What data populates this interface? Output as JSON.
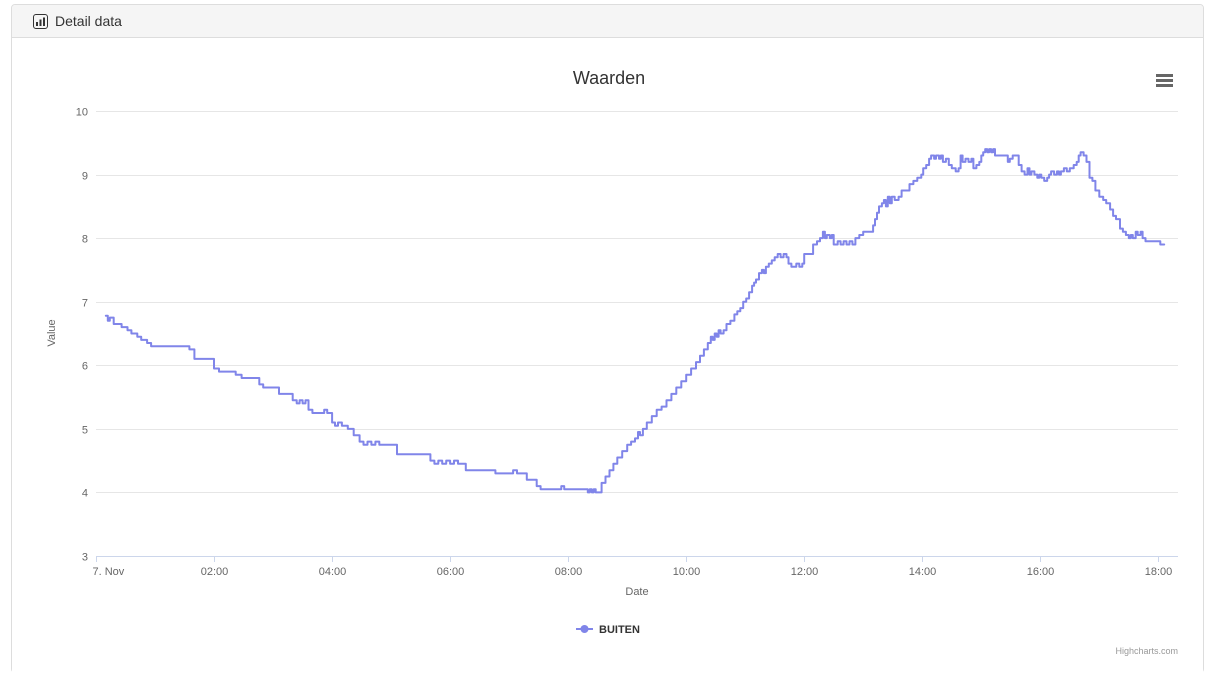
{
  "panel": {
    "title": "Detail data",
    "icon": "bar-chart-icon"
  },
  "chart": {
    "credits": "Highcharts.com",
    "context_menu_icon": "hamburger-icon",
    "y_ticks": [
      3,
      4,
      5,
      6,
      7,
      8,
      9,
      10
    ],
    "x_ticks": [
      {
        "label": "7. Nov",
        "t": 0
      },
      {
        "label": "02:00",
        "t": 120
      },
      {
        "label": "04:00",
        "t": 240
      },
      {
        "label": "06:00",
        "t": 360
      },
      {
        "label": "08:00",
        "t": 480
      },
      {
        "label": "10:00",
        "t": 600
      },
      {
        "label": "12:00",
        "t": 720
      },
      {
        "label": "14:00",
        "t": 840
      },
      {
        "label": "16:00",
        "t": 960
      },
      {
        "label": "18:00",
        "t": 1080
      }
    ]
  },
  "chart_data": {
    "type": "line",
    "title": "Waarden",
    "xlabel": "Date",
    "ylabel": "Value",
    "x_unit": "minutes since 7. Nov 00:00",
    "xlim": [
      0,
      1100
    ],
    "ylim": [
      3,
      10
    ],
    "grid": "horizontal",
    "legend_position": "bottom-center",
    "colors": {
      "grid": "#e6e6e6",
      "axis": "#ccd6eb",
      "label": "#666666",
      "title": "#333333"
    },
    "series": [
      {
        "name": "BUITEN",
        "color": "#8085e9",
        "step": true,
        "data": [
          [
            10,
            6.78
          ],
          [
            12,
            6.7
          ],
          [
            14,
            6.75
          ],
          [
            18,
            6.65
          ],
          [
            26,
            6.6
          ],
          [
            32,
            6.55
          ],
          [
            36,
            6.5
          ],
          [
            42,
            6.45
          ],
          [
            46,
            6.4
          ],
          [
            52,
            6.35
          ],
          [
            56,
            6.3
          ],
          [
            90,
            6.3
          ],
          [
            95,
            6.25
          ],
          [
            100,
            6.1
          ],
          [
            116,
            6.1
          ],
          [
            120,
            5.95
          ],
          [
            125,
            5.9
          ],
          [
            138,
            5.9
          ],
          [
            142,
            5.85
          ],
          [
            148,
            5.8
          ],
          [
            162,
            5.8
          ],
          [
            166,
            5.7
          ],
          [
            170,
            5.65
          ],
          [
            182,
            5.65
          ],
          [
            186,
            5.55
          ],
          [
            196,
            5.55
          ],
          [
            200,
            5.45
          ],
          [
            204,
            5.4
          ],
          [
            207,
            5.45
          ],
          [
            210,
            5.4
          ],
          [
            213,
            5.45
          ],
          [
            216,
            5.3
          ],
          [
            220,
            5.25
          ],
          [
            229,
            5.25
          ],
          [
            232,
            5.3
          ],
          [
            235,
            5.25
          ],
          [
            240,
            5.1
          ],
          [
            243,
            5.05
          ],
          [
            246,
            5.1
          ],
          [
            250,
            5.05
          ],
          [
            256,
            5.0
          ],
          [
            262,
            4.9
          ],
          [
            268,
            4.8
          ],
          [
            272,
            4.75
          ],
          [
            276,
            4.8
          ],
          [
            280,
            4.75
          ],
          [
            284,
            4.8
          ],
          [
            288,
            4.75
          ],
          [
            302,
            4.75
          ],
          [
            306,
            4.6
          ],
          [
            336,
            4.6
          ],
          [
            340,
            4.5
          ],
          [
            344,
            4.45
          ],
          [
            348,
            4.5
          ],
          [
            352,
            4.45
          ],
          [
            356,
            4.5
          ],
          [
            360,
            4.45
          ],
          [
            364,
            4.5
          ],
          [
            368,
            4.45
          ],
          [
            376,
            4.35
          ],
          [
            402,
            4.35
          ],
          [
            406,
            4.3
          ],
          [
            420,
            4.3
          ],
          [
            424,
            4.35
          ],
          [
            428,
            4.3
          ],
          [
            438,
            4.2
          ],
          [
            448,
            4.1
          ],
          [
            452,
            4.05
          ],
          [
            470,
            4.05
          ],
          [
            473,
            4.1
          ],
          [
            476,
            4.05
          ],
          [
            498,
            4.05
          ],
          [
            500,
            4.0
          ],
          [
            502,
            4.05
          ],
          [
            504,
            4.0
          ],
          [
            506,
            4.05
          ],
          [
            508,
            4.0
          ],
          [
            511,
            4.0
          ],
          [
            514,
            4.15
          ],
          [
            518,
            4.25
          ],
          [
            522,
            4.35
          ],
          [
            526,
            4.45
          ],
          [
            530,
            4.55
          ],
          [
            535,
            4.65
          ],
          [
            540,
            4.75
          ],
          [
            544,
            4.8
          ],
          [
            548,
            4.85
          ],
          [
            551,
            4.95
          ],
          [
            553,
            4.9
          ],
          [
            556,
            5.0
          ],
          [
            560,
            5.1
          ],
          [
            565,
            5.2
          ],
          [
            570,
            5.3
          ],
          [
            575,
            5.35
          ],
          [
            580,
            5.45
          ],
          [
            585,
            5.55
          ],
          [
            590,
            5.65
          ],
          [
            595,
            5.75
          ],
          [
            600,
            5.85
          ],
          [
            605,
            5.95
          ],
          [
            610,
            6.05
          ],
          [
            614,
            6.15
          ],
          [
            618,
            6.25
          ],
          [
            622,
            6.35
          ],
          [
            625,
            6.45
          ],
          [
            627,
            6.4
          ],
          [
            629,
            6.5
          ],
          [
            631,
            6.45
          ],
          [
            633,
            6.55
          ],
          [
            635,
            6.5
          ],
          [
            638,
            6.55
          ],
          [
            641,
            6.65
          ],
          [
            645,
            6.7
          ],
          [
            649,
            6.8
          ],
          [
            652,
            6.85
          ],
          [
            655,
            6.9
          ],
          [
            658,
            7.0
          ],
          [
            661,
            7.05
          ],
          [
            664,
            7.15
          ],
          [
            667,
            7.25
          ],
          [
            669,
            7.3
          ],
          [
            671,
            7.35
          ],
          [
            674,
            7.45
          ],
          [
            677,
            7.5
          ],
          [
            679,
            7.45
          ],
          [
            681,
            7.55
          ],
          [
            684,
            7.6
          ],
          [
            687,
            7.65
          ],
          [
            690,
            7.7
          ],
          [
            693,
            7.75
          ],
          [
            696,
            7.7
          ],
          [
            699,
            7.75
          ],
          [
            702,
            7.7
          ],
          [
            704,
            7.6
          ],
          [
            707,
            7.55
          ],
          [
            712,
            7.6
          ],
          [
            715,
            7.55
          ],
          [
            718,
            7.6
          ],
          [
            720,
            7.75
          ],
          [
            726,
            7.75
          ],
          [
            729,
            7.9
          ],
          [
            733,
            7.95
          ],
          [
            736,
            8.0
          ],
          [
            739,
            8.1
          ],
          [
            741,
            8.0
          ],
          [
            743,
            8.05
          ],
          [
            746,
            8.0
          ],
          [
            748,
            8.05
          ],
          [
            750,
            7.9
          ],
          [
            754,
            7.95
          ],
          [
            757,
            7.9
          ],
          [
            760,
            7.95
          ],
          [
            763,
            7.9
          ],
          [
            766,
            7.95
          ],
          [
            769,
            7.9
          ],
          [
            772,
            8.0
          ],
          [
            776,
            8.05
          ],
          [
            780,
            8.1
          ],
          [
            787,
            8.1
          ],
          [
            790,
            8.2
          ],
          [
            792,
            8.3
          ],
          [
            794,
            8.4
          ],
          [
            796,
            8.5
          ],
          [
            799,
            8.55
          ],
          [
            801,
            8.6
          ],
          [
            803,
            8.5
          ],
          [
            805,
            8.65
          ],
          [
            807,
            8.55
          ],
          [
            809,
            8.65
          ],
          [
            812,
            8.6
          ],
          [
            816,
            8.65
          ],
          [
            819,
            8.75
          ],
          [
            824,
            8.75
          ],
          [
            827,
            8.85
          ],
          [
            831,
            8.9
          ],
          [
            835,
            8.95
          ],
          [
            839,
            9.0
          ],
          [
            841,
            9.1
          ],
          [
            844,
            9.15
          ],
          [
            847,
            9.25
          ],
          [
            849,
            9.3
          ],
          [
            852,
            9.25
          ],
          [
            854,
            9.3
          ],
          [
            857,
            9.25
          ],
          [
            859,
            9.3
          ],
          [
            861,
            9.2
          ],
          [
            864,
            9.25
          ],
          [
            867,
            9.15
          ],
          [
            870,
            9.1
          ],
          [
            874,
            9.05
          ],
          [
            877,
            9.1
          ],
          [
            879,
            9.3
          ],
          [
            881,
            9.2
          ],
          [
            884,
            9.25
          ],
          [
            887,
            9.2
          ],
          [
            890,
            9.25
          ],
          [
            892,
            9.1
          ],
          [
            895,
            9.15
          ],
          [
            898,
            9.2
          ],
          [
            900,
            9.3
          ],
          [
            902,
            9.35
          ],
          [
            904,
            9.4
          ],
          [
            906,
            9.35
          ],
          [
            908,
            9.4
          ],
          [
            910,
            9.35
          ],
          [
            912,
            9.4
          ],
          [
            914,
            9.3
          ],
          [
            924,
            9.3
          ],
          [
            927,
            9.2
          ],
          [
            929,
            9.25
          ],
          [
            932,
            9.3
          ],
          [
            936,
            9.3
          ],
          [
            938,
            9.15
          ],
          [
            941,
            9.05
          ],
          [
            944,
            9.0
          ],
          [
            947,
            9.1
          ],
          [
            949,
            9.0
          ],
          [
            951,
            9.05
          ],
          [
            954,
            9.0
          ],
          [
            957,
            8.95
          ],
          [
            959,
            9.0
          ],
          [
            961,
            8.95
          ],
          [
            964,
            8.9
          ],
          [
            967,
            8.95
          ],
          [
            969,
            9.0
          ],
          [
            971,
            9.05
          ],
          [
            974,
            9.0
          ],
          [
            977,
            9.05
          ],
          [
            979,
            9.0
          ],
          [
            981,
            9.05
          ],
          [
            984,
            9.1
          ],
          [
            987,
            9.05
          ],
          [
            990,
            9.1
          ],
          [
            994,
            9.15
          ],
          [
            997,
            9.2
          ],
          [
            999,
            9.3
          ],
          [
            1001,
            9.35
          ],
          [
            1004,
            9.3
          ],
          [
            1007,
            9.2
          ],
          [
            1010,
            8.95
          ],
          [
            1013,
            8.9
          ],
          [
            1016,
            8.75
          ],
          [
            1020,
            8.65
          ],
          [
            1024,
            8.6
          ],
          [
            1027,
            8.55
          ],
          [
            1031,
            8.45
          ],
          [
            1034,
            8.35
          ],
          [
            1037,
            8.3
          ],
          [
            1041,
            8.15
          ],
          [
            1044,
            8.1
          ],
          [
            1047,
            8.05
          ],
          [
            1050,
            8.0
          ],
          [
            1052,
            8.05
          ],
          [
            1054,
            8.0
          ],
          [
            1057,
            8.1
          ],
          [
            1059,
            8.05
          ],
          [
            1062,
            8.1
          ],
          [
            1064,
            8.0
          ],
          [
            1067,
            7.95
          ],
          [
            1078,
            7.95
          ],
          [
            1082,
            7.9
          ],
          [
            1086,
            7.9
          ]
        ]
      }
    ]
  }
}
